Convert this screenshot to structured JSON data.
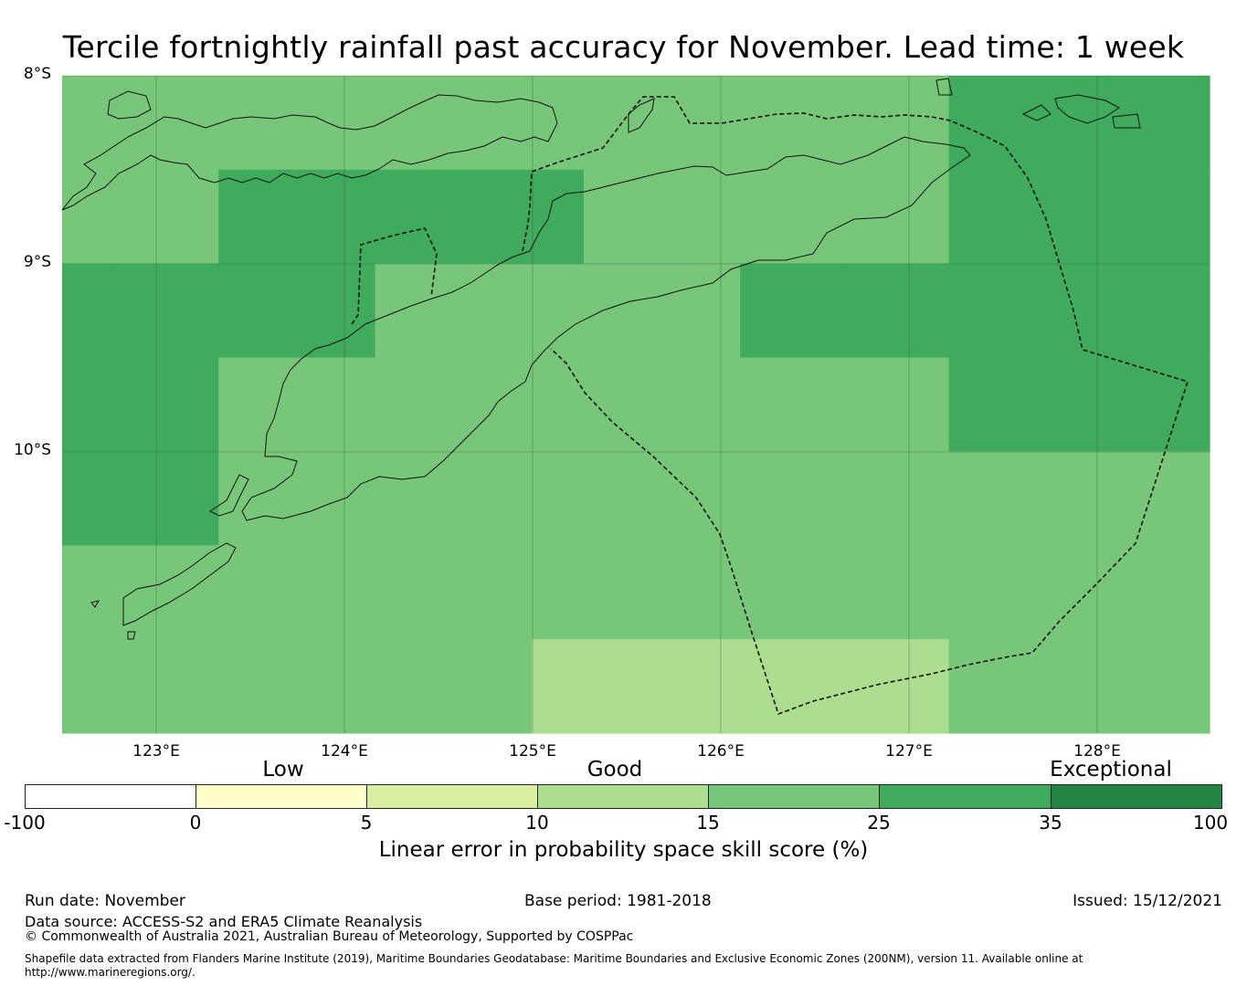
{
  "title": "Tercile fortnightly rainfall past accuracy for November. Lead time: 1 week",
  "map": {
    "lat_labels": [
      "8°S",
      "9°S",
      "10°S"
    ],
    "lon_labels": [
      "123°E",
      "124°E",
      "125°E",
      "126°E",
      "127°E",
      "128°E"
    ],
    "grid_colors": {
      "c10_15": "#addd8e",
      "c15_25": "#78c679",
      "c25_35": "#41ab5d"
    },
    "skill_grid": {
      "description": "per-cell categories; 0=10-15, 1=15-25, 2=25-35",
      "rows": [
        [
          1,
          1,
          1,
          1,
          1,
          1,
          1,
          1,
          1,
          1,
          1,
          1,
          1,
          1,
          1,
          1,
          1,
          2,
          2,
          2,
          2,
          2
        ],
        [
          1,
          1,
          1,
          2,
          2,
          2,
          2,
          2,
          2,
          2,
          1,
          1,
          1,
          1,
          1,
          1,
          1,
          2,
          2,
          2,
          2,
          2
        ],
        [
          2,
          2,
          2,
          2,
          2,
          2,
          1,
          1,
          1,
          1,
          1,
          1,
          1,
          2,
          2,
          2,
          2,
          2,
          2,
          2,
          2,
          2
        ],
        [
          2,
          2,
          2,
          1,
          1,
          1,
          1,
          1,
          1,
          1,
          1,
          1,
          1,
          1,
          1,
          1,
          1,
          2,
          2,
          2,
          2,
          2
        ],
        [
          2,
          2,
          2,
          1,
          1,
          1,
          1,
          1,
          1,
          1,
          1,
          1,
          1,
          1,
          1,
          1,
          1,
          1,
          1,
          1,
          1,
          1
        ],
        [
          1,
          1,
          1,
          1,
          1,
          1,
          1,
          1,
          1,
          1,
          1,
          1,
          1,
          1,
          1,
          1,
          1,
          1,
          1,
          1,
          1,
          1
        ],
        [
          1,
          1,
          1,
          1,
          1,
          1,
          1,
          1,
          1,
          0,
          0,
          0,
          0,
          0,
          0,
          0,
          0,
          1,
          1,
          1,
          1,
          1
        ]
      ]
    }
  },
  "colorbar": {
    "categories": [
      "Low",
      "Good",
      "Exceptional"
    ],
    "ticks": [
      "-100",
      "0",
      "5",
      "10",
      "15",
      "25",
      "35",
      "100"
    ],
    "colors": [
      "#ffffff",
      "#ffffcc",
      "#d9f0a3",
      "#addd8e",
      "#78c679",
      "#41ab5d",
      "#238443"
    ],
    "label": "Linear error in probability space skill score (%)"
  },
  "footer": {
    "run_date": "Run date: November",
    "base_period": "Base period: 1981-2018",
    "issued": "Issued: 15/12/2021",
    "data_source": "Data source: ACCESS-S2 and ERA5 Climate Reanalysis",
    "copyright": "© Commonwealth of Australia 2021, Australian Bureau of Meteorology, Supported by COSPPac",
    "shapefile_line1": "Shapefile data extracted from Flanders Marine Institute (2019), Maritime Boundaries Geodatabase: Maritime Boundaries and Exclusive Economic Zones (200NM), version 11. Available online at",
    "shapefile_line2": "http://www.marineregions.org/."
  }
}
